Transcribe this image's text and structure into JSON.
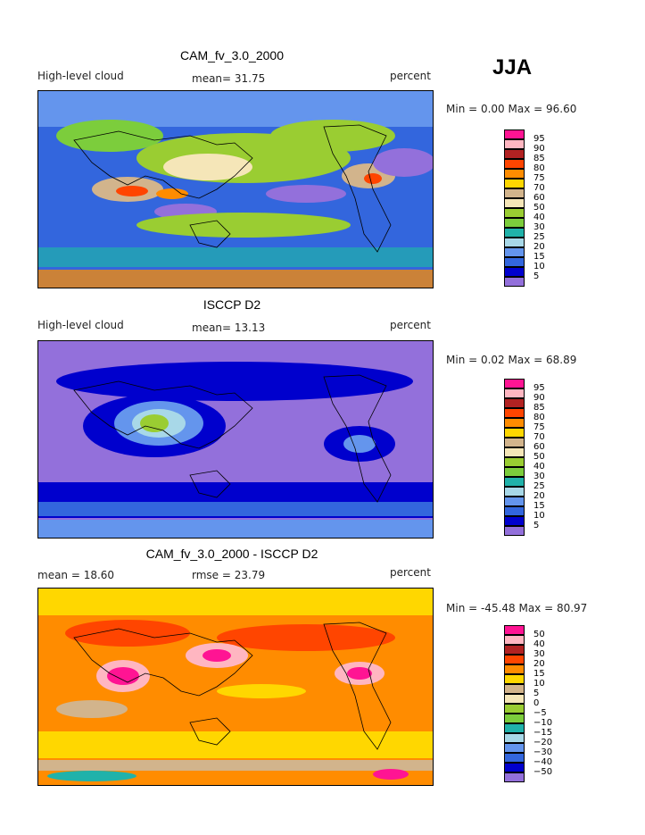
{
  "season": "JJA",
  "panels": [
    {
      "title": "CAM_fv_3.0_2000",
      "left_label": "High-level cloud",
      "center_label": "mean=  31.75",
      "right_label": "percent",
      "minmax": "Min =   0.00 Max =  96.60",
      "legend_levels": [
        "95",
        "90",
        "85",
        "80",
        "75",
        "70",
        "60",
        "50",
        "40",
        "30",
        "25",
        "20",
        "15",
        "10",
        "5"
      ]
    },
    {
      "title": "ISCCP D2",
      "left_label": "High-level cloud",
      "center_label": "mean=  13.13",
      "right_label": "percent",
      "minmax": "Min =   0.02 Max =  68.89",
      "legend_levels": [
        "95",
        "90",
        "85",
        "80",
        "75",
        "70",
        "60",
        "50",
        "40",
        "30",
        "25",
        "20",
        "15",
        "10",
        "5"
      ]
    },
    {
      "title": "CAM_fv_3.0_2000 - ISCCP D2",
      "left_label": "mean =  18.60",
      "center_label": "rmse =  23.79",
      "right_label": "percent",
      "minmax": "Min = -45.48 Max =  80.97",
      "legend_levels": [
        "50",
        "40",
        "30",
        "20",
        "15",
        "10",
        "5",
        "0",
        "−5",
        "−10",
        "−15",
        "−20",
        "−30",
        "−40",
        "−50"
      ]
    }
  ],
  "colors": {
    "legend_top_to_bottom": [
      "#ff1493",
      "#ffb6c1",
      "#b22222",
      "#ff4500",
      "#ff8c00",
      "#ffd700",
      "#d2b48c",
      "#f5e6b8",
      "#9acd32",
      "#7ccd3c",
      "#20b2aa",
      "#a8d8e8",
      "#6495ed",
      "#3366dd",
      "#0000cd",
      "#9370db"
    ],
    "land_outline": "#000000"
  }
}
